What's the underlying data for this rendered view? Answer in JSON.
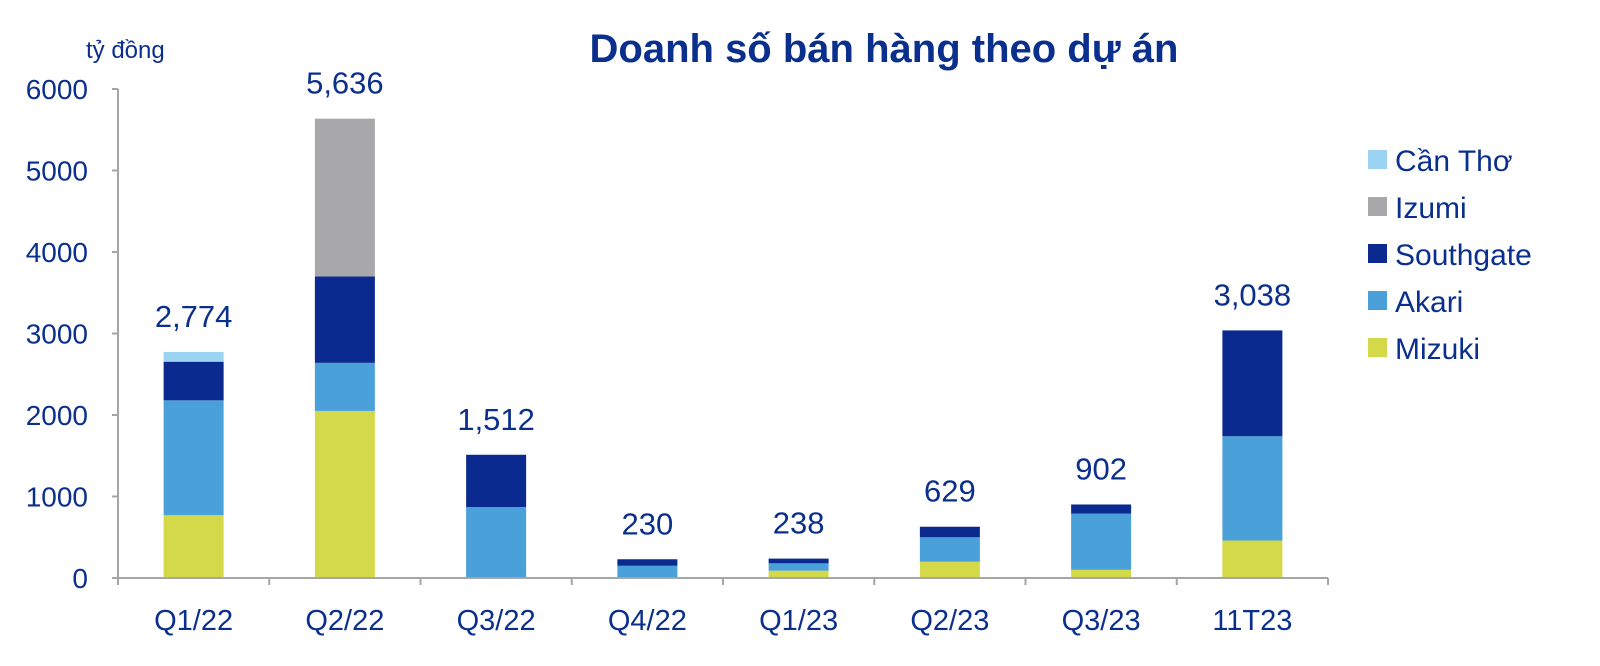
{
  "chart_data": {
    "type": "bar",
    "stacked": true,
    "title": "Doanh số bán hàng theo dự án",
    "ylabel": "tỷ đồng",
    "xlabel": "",
    "ylim": [
      0,
      6000
    ],
    "yticks": [
      0,
      1000,
      2000,
      3000,
      4000,
      5000,
      6000
    ],
    "grid": false,
    "legend_position": "right",
    "categories": [
      "Q1/22",
      "Q2/22",
      "Q3/22",
      "Q4/22",
      "Q1/23",
      "Q2/23",
      "Q3/23",
      "11T23"
    ],
    "totals": [
      "2,774",
      "5,636",
      "1,512",
      "230",
      "238",
      "629",
      "902",
      "3,038"
    ],
    "series": [
      {
        "name": "Mizuki",
        "color": "#d4d94a",
        "values": [
          770,
          2050,
          0,
          0,
          90,
          200,
          100,
          460
        ]
      },
      {
        "name": "Akari",
        "color": "#4aa0d8",
        "values": [
          1410,
          590,
          870,
          150,
          90,
          300,
          690,
          1280
        ]
      },
      {
        "name": "Southgate",
        "color": "#0a2a8f",
        "values": [
          474,
          1060,
          642,
          80,
          58,
          129,
          112,
          1298
        ]
      },
      {
        "name": "Izumi",
        "color": "#a8a8ab",
        "values": [
          0,
          1936,
          0,
          0,
          0,
          0,
          0,
          0
        ]
      },
      {
        "name": "Cần Thơ",
        "color": "#9ad4f0",
        "values": [
          120,
          0,
          0,
          0,
          0,
          0,
          0,
          0
        ]
      }
    ]
  }
}
